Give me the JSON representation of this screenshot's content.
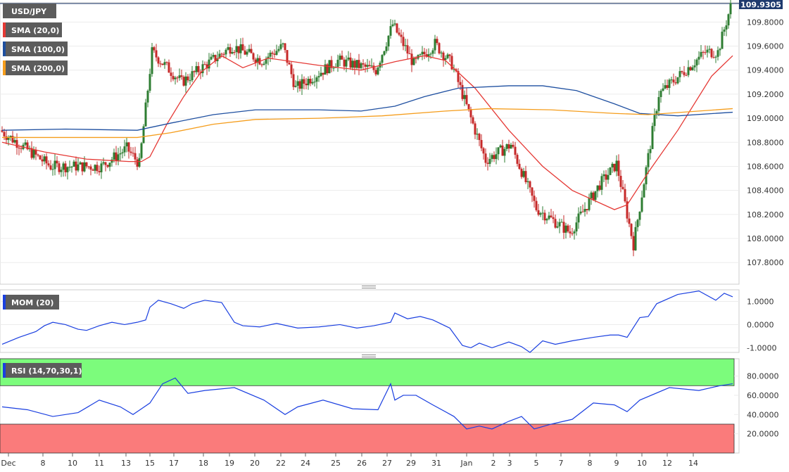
{
  "legend": {
    "symbol": "USD/JPY",
    "sma20": "SMA (20,0)",
    "sma100": "SMA (100,0)",
    "sma200": "SMA (200,0)",
    "mom": "MOM (20)",
    "rsi": "RSI (14,70,30,1)"
  },
  "colors": {
    "bull": "#2e7d32",
    "bear": "#c62828",
    "sma20": "#e53935",
    "sma100": "#1e4fa0",
    "sma200": "#f59d1c",
    "indicator": "#1a3fe0",
    "overbought": "#7cfc7c",
    "oversold": "#fa7b7b"
  },
  "chart_data": [
    {
      "type": "candlestick",
      "title": "USD/JPY",
      "price_tag": "109.9305",
      "ylim": [
        107.62,
        109.96
      ],
      "yticks": [
        "109.8000",
        "109.6000",
        "109.4000",
        "109.2000",
        "109.0000",
        "108.8000",
        "108.6000",
        "108.4000",
        "108.2000",
        "108.0000",
        "107.8000"
      ],
      "ytick_values": [
        109.8,
        109.6,
        109.4,
        109.2,
        109.0,
        108.8,
        108.6,
        108.4,
        108.2,
        108.0,
        107.8
      ],
      "x_labels": [
        "Dec",
        "8",
        "10",
        "11",
        "13",
        "15",
        "17",
        "18",
        "19",
        "20",
        "22",
        "24",
        "25",
        "26",
        "27",
        "29",
        "31",
        "Jan",
        "2",
        "3",
        "5",
        "7",
        "8",
        "9",
        "10",
        "12",
        "14"
      ],
      "segments": [
        [
          0,
          24,
          108.9,
          108.6
        ],
        [
          24,
          48,
          108.6,
          108.6
        ],
        [
          48,
          60,
          108.6,
          108.75
        ],
        [
          60,
          66,
          108.75,
          108.62
        ],
        [
          66,
          72,
          108.62,
          109.55
        ],
        [
          72,
          86,
          109.55,
          109.3
        ],
        [
          86,
          110,
          109.3,
          109.6
        ],
        [
          110,
          124,
          109.6,
          109.48
        ],
        [
          124,
          134,
          109.48,
          109.6
        ],
        [
          134,
          140,
          109.6,
          109.25
        ],
        [
          140,
          160,
          109.25,
          109.48
        ],
        [
          160,
          178,
          109.48,
          109.4
        ],
        [
          178,
          186,
          109.4,
          109.78
        ],
        [
          186,
          196,
          109.78,
          109.45
        ],
        [
          196,
          206,
          109.45,
          109.62
        ],
        [
          206,
          214,
          109.62,
          109.45
        ],
        [
          214,
          230,
          109.45,
          108.65
        ],
        [
          230,
          242,
          108.65,
          108.78
        ],
        [
          242,
          254,
          108.78,
          108.25
        ],
        [
          254,
          270,
          108.25,
          108.05
        ],
        [
          270,
          284,
          108.05,
          108.45
        ],
        [
          284,
          292,
          108.45,
          108.62
        ],
        [
          292,
          300,
          108.62,
          107.95
        ],
        [
          300,
          312,
          107.95,
          109.2
        ],
        [
          312,
          334,
          109.2,
          109.55
        ],
        [
          334,
          340,
          109.55,
          109.55
        ],
        [
          340,
          346,
          109.55,
          109.93
        ]
      ],
      "moving_averages": [
        {
          "name": "SMA (20,0)",
          "pts": [
            [
              0,
              108.8
            ],
            [
              20,
              108.72
            ],
            [
              40,
              108.66
            ],
            [
              60,
              108.64
            ],
            [
              66,
              108.64
            ],
            [
              70,
              108.68
            ],
            [
              78,
              108.95
            ],
            [
              86,
              109.18
            ],
            [
              94,
              109.38
            ],
            [
              104,
              109.52
            ],
            [
              114,
              109.42
            ],
            [
              126,
              109.5
            ],
            [
              150,
              109.44
            ],
            [
              170,
              109.4
            ],
            [
              186,
              109.47
            ],
            [
              200,
              109.52
            ],
            [
              210,
              109.48
            ],
            [
              224,
              109.25
            ],
            [
              240,
              108.9
            ],
            [
              256,
              108.6
            ],
            [
              270,
              108.4
            ],
            [
              290,
              108.24
            ],
            [
              296,
              108.28
            ],
            [
              306,
              108.55
            ],
            [
              320,
              108.9
            ],
            [
              336,
              109.35
            ],
            [
              346,
              109.52
            ]
          ]
        },
        {
          "name": "SMA (100,0)",
          "pts": [
            [
              0,
              108.9
            ],
            [
              30,
              108.91
            ],
            [
              64,
              108.9
            ],
            [
              80,
              108.96
            ],
            [
              100,
              109.03
            ],
            [
              120,
              109.07
            ],
            [
              150,
              109.07
            ],
            [
              170,
              109.06
            ],
            [
              186,
              109.1
            ],
            [
              200,
              109.18
            ],
            [
              216,
              109.25
            ],
            [
              240,
              109.27
            ],
            [
              256,
              109.27
            ],
            [
              272,
              109.23
            ],
            [
              290,
              109.12
            ],
            [
              302,
              109.04
            ],
            [
              320,
              109.02
            ],
            [
              346,
              109.05
            ]
          ]
        },
        {
          "name": "SMA (200,0)",
          "pts": [
            [
              0,
              108.84
            ],
            [
              64,
              108.84
            ],
            [
              80,
              108.88
            ],
            [
              100,
              108.95
            ],
            [
              120,
              108.99
            ],
            [
              150,
              109.0
            ],
            [
              180,
              109.02
            ],
            [
              210,
              109.06
            ],
            [
              230,
              109.08
            ],
            [
              260,
              109.07
            ],
            [
              290,
              109.04
            ],
            [
              306,
              109.03
            ],
            [
              330,
              109.06
            ],
            [
              346,
              109.08
            ]
          ]
        }
      ]
    },
    {
      "type": "line",
      "name": "MOM (20)",
      "ylim": [
        -1.2,
        1.5
      ],
      "yticks": [
        "1.0000",
        "0.0000",
        "-1.0000"
      ],
      "ytick_values": [
        1.0,
        0.0,
        -1.0
      ],
      "x": [
        0,
        8,
        16,
        20,
        24,
        30,
        36,
        40,
        46,
        52,
        58,
        64,
        68,
        70,
        74,
        80,
        86,
        90,
        96,
        104,
        110,
        114,
        122,
        130,
        140,
        150,
        160,
        168,
        176,
        184,
        186,
        192,
        198,
        204,
        212,
        218,
        222,
        226,
        232,
        240,
        246,
        250,
        256,
        262,
        270,
        280,
        288,
        292,
        296,
        302,
        306,
        310,
        320,
        330,
        338,
        342,
        346
      ],
      "y": [
        -0.85,
        -0.55,
        -0.3,
        -0.05,
        0.1,
        0.0,
        -0.2,
        -0.25,
        -0.05,
        0.1,
        0.0,
        0.1,
        0.2,
        0.75,
        1.05,
        0.9,
        0.7,
        0.9,
        1.05,
        0.95,
        0.1,
        -0.05,
        -0.1,
        0.05,
        -0.15,
        -0.1,
        0.0,
        -0.15,
        -0.05,
        0.1,
        0.5,
        0.25,
        0.35,
        0.2,
        -0.15,
        -0.9,
        -1.0,
        -0.8,
        -1.0,
        -0.75,
        -0.95,
        -1.2,
        -0.7,
        -0.85,
        -0.7,
        -0.55,
        -0.45,
        -0.45,
        -0.55,
        0.3,
        0.35,
        0.9,
        1.3,
        1.45,
        1.05,
        1.35,
        1.2
      ]
    },
    {
      "type": "line",
      "name": "RSI (14,70,30,1)",
      "ylim": [
        0,
        98
      ],
      "bands": {
        "overbought": 70,
        "oversold": 30
      },
      "yticks": [
        "80.0000",
        "60.0000",
        "40.0000",
        "20.0000"
      ],
      "ytick_values": [
        80,
        60,
        40,
        20
      ],
      "x": [
        0,
        12,
        24,
        36,
        46,
        56,
        62,
        66,
        70,
        76,
        82,
        88,
        96,
        110,
        124,
        134,
        140,
        152,
        166,
        178,
        184,
        186,
        190,
        196,
        204,
        214,
        220,
        226,
        232,
        240,
        246,
        252,
        260,
        270,
        280,
        290,
        296,
        302,
        316,
        330,
        340,
        346
      ],
      "y": [
        48,
        45,
        38,
        42,
        55,
        48,
        40,
        46,
        52,
        72,
        78,
        62,
        65,
        68,
        55,
        40,
        48,
        55,
        46,
        45,
        72,
        55,
        60,
        60,
        50,
        38,
        25,
        28,
        25,
        33,
        38,
        25,
        30,
        35,
        52,
        50,
        43,
        55,
        68,
        65,
        70,
        72
      ]
    }
  ]
}
